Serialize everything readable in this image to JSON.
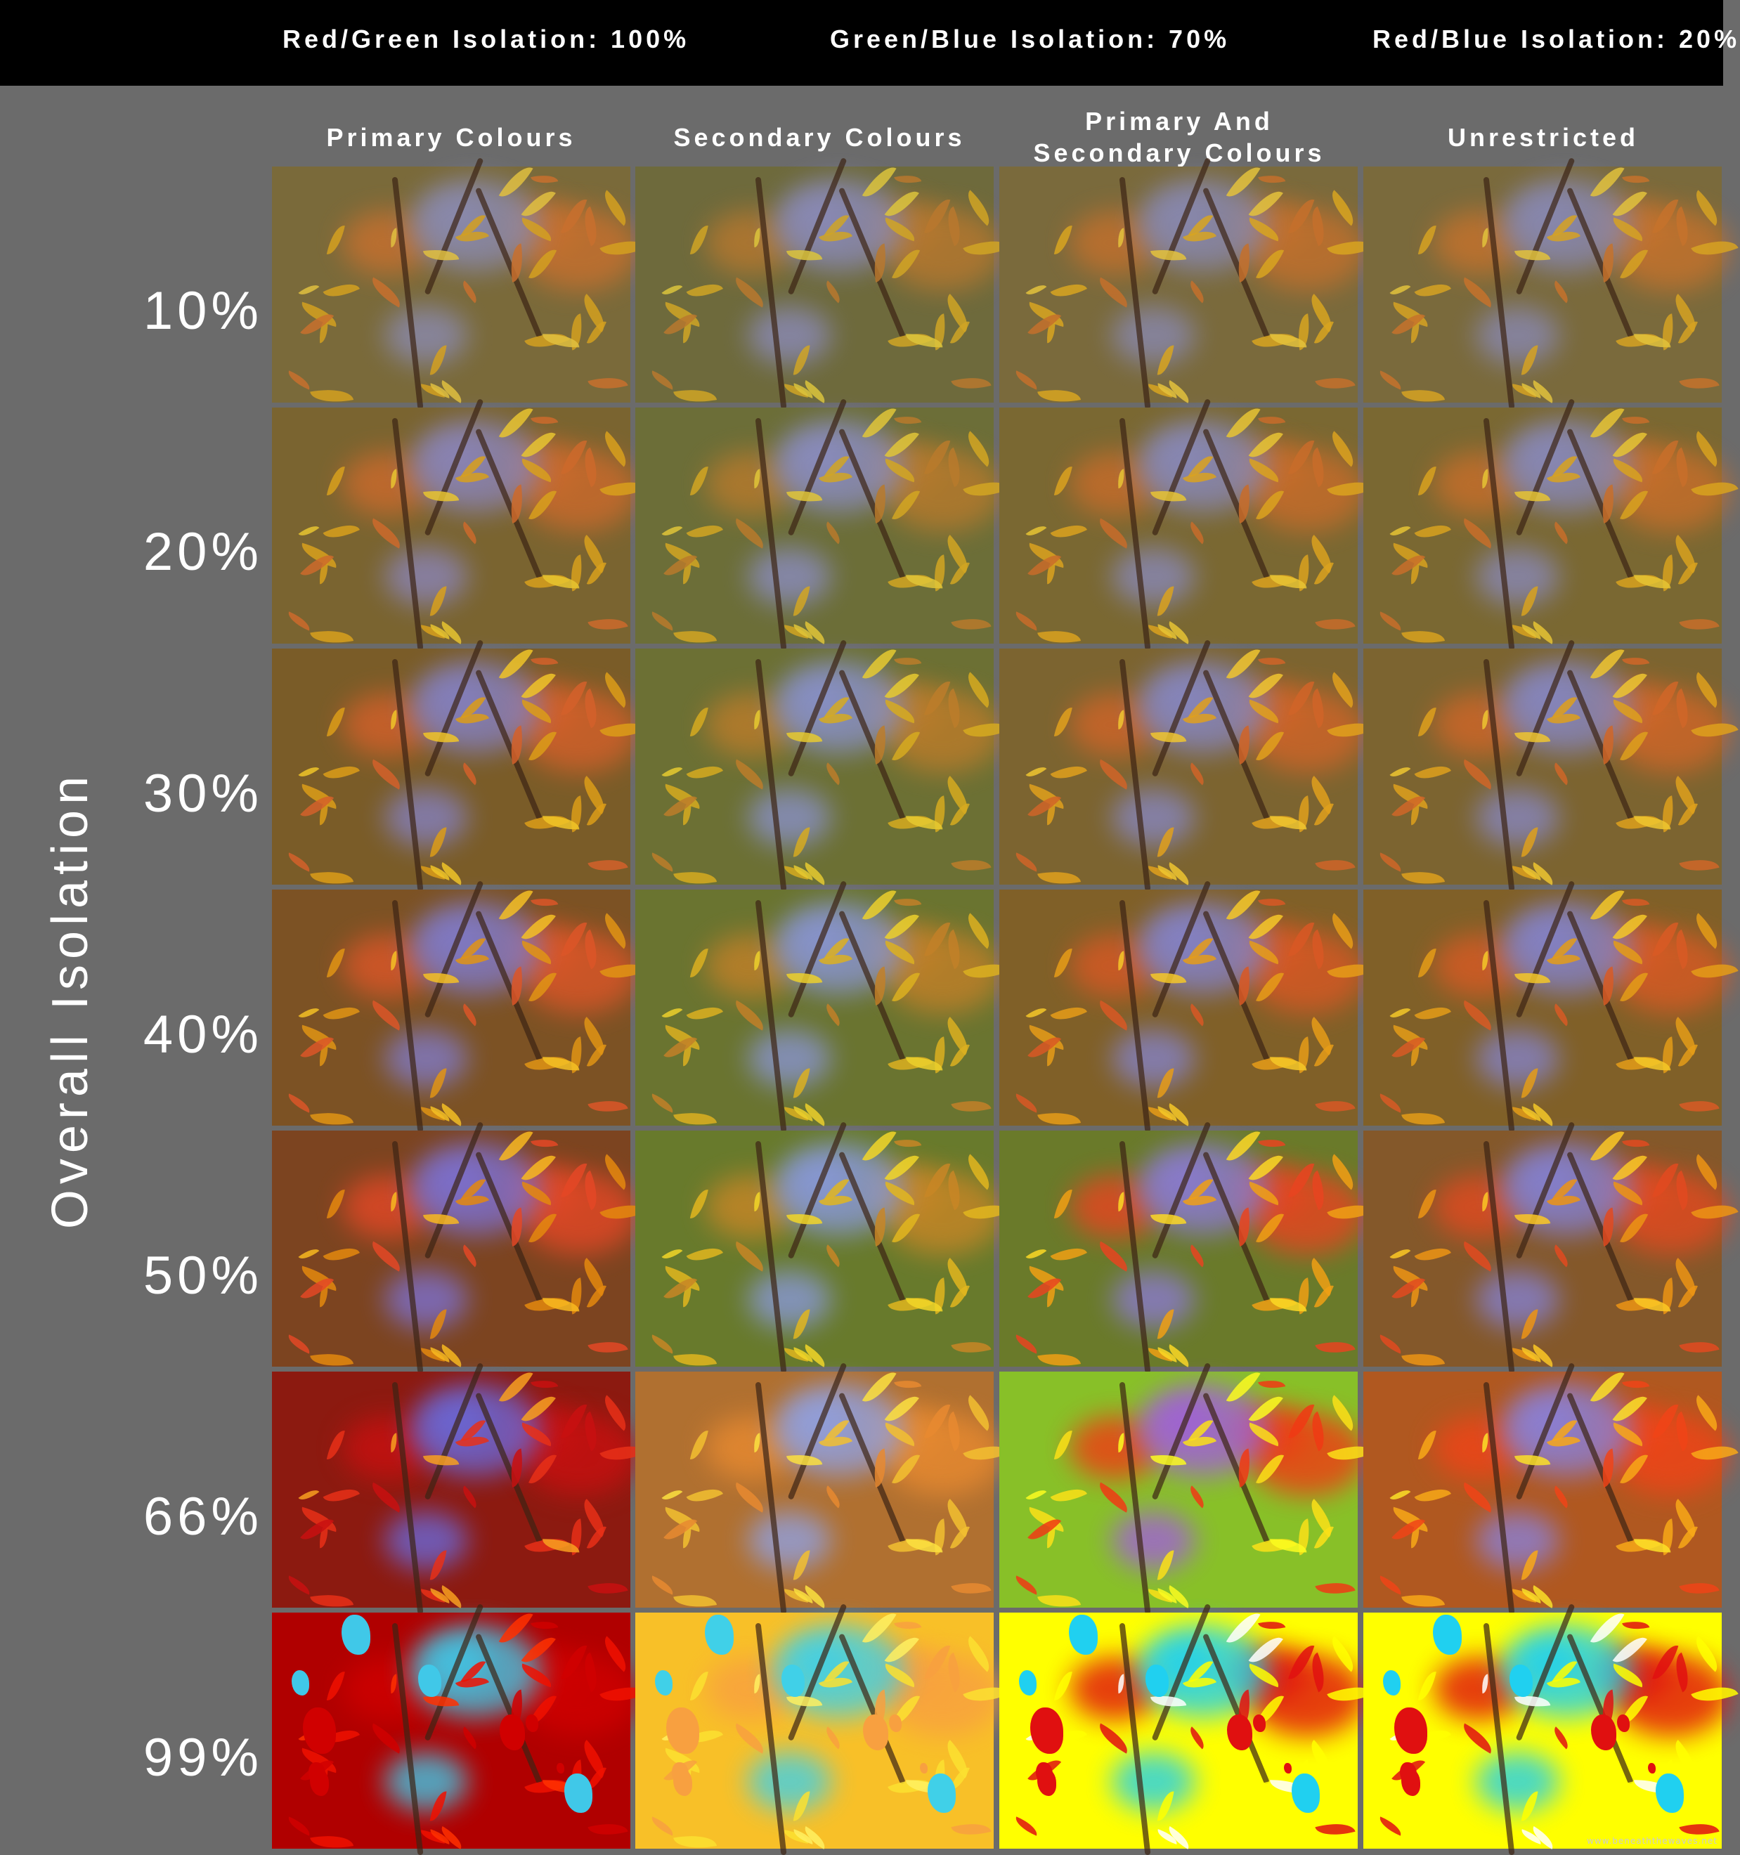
{
  "header": {
    "labels": [
      "Red/Green Isolation: 100%",
      "Green/Blue Isolation: 70%",
      "Red/Blue Isolation: 20%"
    ]
  },
  "columns": [
    {
      "lines": [
        "Primary Colours"
      ]
    },
    {
      "lines": [
        "Secondary Colours"
      ]
    },
    {
      "lines": [
        "Primary And",
        "Secondary Colours"
      ]
    },
    {
      "lines": [
        "Unrestricted"
      ]
    }
  ],
  "axis": {
    "title": "Overall Isolation"
  },
  "rows": [
    "10%",
    "20%",
    "30%",
    "40%",
    "50%",
    "66%",
    "99%"
  ],
  "watermark": "www.beneaththewaves.net",
  "palettes": [
    [
      {
        "bg": "#7a6a3a",
        "leaf1": "#d4a020",
        "leaf2": "#c8702e",
        "leaf3": "#e0c040",
        "shadow": "#8a8ab0"
      },
      {
        "bg": "#6e6a3c",
        "leaf1": "#d0a424",
        "leaf2": "#b8782e",
        "leaf3": "#dcc43c",
        "shadow": "#8a8ab8"
      },
      {
        "bg": "#7a6a3c",
        "leaf1": "#d8a420",
        "leaf2": "#c4702c",
        "leaf3": "#e4c23c",
        "shadow": "#8888b0"
      },
      {
        "bg": "#7a6a3c",
        "leaf1": "#d6a222",
        "leaf2": "#c6722c",
        "leaf3": "#e2c23c",
        "shadow": "#8888b2"
      }
    ],
    [
      {
        "bg": "#7a6430",
        "leaf1": "#d8a01c",
        "leaf2": "#cc6a2c",
        "leaf3": "#e8c430",
        "shadow": "#8a84b8"
      },
      {
        "bg": "#6c6e38",
        "leaf1": "#d2a622",
        "leaf2": "#b87a2c",
        "leaf3": "#e0c638",
        "shadow": "#8a8cc0"
      },
      {
        "bg": "#7a6832",
        "leaf1": "#daa21e",
        "leaf2": "#c86c2a",
        "leaf3": "#e8c434",
        "shadow": "#8888b8"
      },
      {
        "bg": "#7a6832",
        "leaf1": "#d8a21e",
        "leaf2": "#c86e2a",
        "leaf3": "#e6c434",
        "shadow": "#8888b8"
      }
    ],
    [
      {
        "bg": "#7a5c28",
        "leaf1": "#dc9c18",
        "leaf2": "#d4602a",
        "leaf3": "#f0c428",
        "shadow": "#8480c0"
      },
      {
        "bg": "#6c7034",
        "leaf1": "#d6aa20",
        "leaf2": "#bc7c2a",
        "leaf3": "#e6ca30",
        "shadow": "#8890c8"
      },
      {
        "bg": "#7c6430",
        "leaf1": "#e0a01c",
        "leaf2": "#d06428",
        "leaf3": "#f0c630",
        "shadow": "#8686c0"
      },
      {
        "bg": "#7c6430",
        "leaf1": "#dea01c",
        "leaf2": "#d06628",
        "leaf3": "#eec630",
        "shadow": "#8686c0"
      }
    ],
    [
      {
        "bg": "#7c5224",
        "leaf1": "#e09414",
        "leaf2": "#dc5628",
        "leaf3": "#f4c024",
        "shadow": "#807ac8"
      },
      {
        "bg": "#6a7430",
        "leaf1": "#dcb020",
        "leaf2": "#c28028",
        "leaf3": "#ecd02c",
        "shadow": "#8894d0"
      },
      {
        "bg": "#806028",
        "leaf1": "#e69c18",
        "leaf2": "#d85824",
        "leaf3": "#f6c828",
        "shadow": "#8482c8"
      },
      {
        "bg": "#806028",
        "leaf1": "#e49c18",
        "leaf2": "#d85a24",
        "leaf3": "#f4c828",
        "shadow": "#8482c8"
      }
    ],
    [
      {
        "bg": "#7c4420",
        "leaf1": "#e4880e",
        "leaf2": "#e44826",
        "leaf3": "#f8b820",
        "shadow": "#7c70d0"
      },
      {
        "bg": "#687a2c",
        "leaf1": "#e2b61e",
        "leaf2": "#c88626",
        "leaf3": "#f2d628",
        "shadow": "#8898d8"
      },
      {
        "bg": "#6a7a2a",
        "leaf1": "#f0a014",
        "leaf2": "#e84420",
        "leaf3": "#fcd824",
        "shadow": "#8a7ad0"
      },
      {
        "bg": "#84582a",
        "leaf1": "#ec9414",
        "leaf2": "#e24a20",
        "leaf3": "#fcc824",
        "shadow": "#8480d0"
      }
    ],
    [
      {
        "bg": "#8c1a10",
        "leaf1": "#e83018",
        "leaf2": "#c81010",
        "leaf3": "#f8a020",
        "shadow": "#6a68d8"
      },
      {
        "bg": "#b07030",
        "leaf1": "#f2c030",
        "leaf2": "#e88a30",
        "leaf3": "#fce040",
        "shadow": "#90a0e0"
      },
      {
        "bg": "#88c028",
        "leaf1": "#fce018",
        "leaf2": "#f03a14",
        "leaf3": "#fcfc20",
        "shadow": "#a060d8"
      },
      {
        "bg": "#b05820",
        "leaf1": "#f8a818",
        "leaf2": "#f04418",
        "leaf3": "#fce028",
        "shadow": "#8a80d8"
      }
    ],
    [
      {
        "bg": "#b00000",
        "leaf1": "#f01000",
        "leaf2": "#d00000",
        "leaf3": "#ff3000",
        "shadow": "#40c8e8"
      },
      {
        "bg": "#f8c028",
        "leaf1": "#fce030",
        "leaf2": "#f8a040",
        "leaf3": "#fff060",
        "shadow": "#40d0e8"
      },
      {
        "bg": "#ffff00",
        "leaf1": "#ffff00",
        "leaf2": "#e01010",
        "leaf3": "#ffffff",
        "shadow": "#20d0f0"
      },
      {
        "bg": "#ffff00",
        "leaf1": "#ffff00",
        "leaf2": "#e01010",
        "leaf3": "#ffffff",
        "shadow": "#20d0f0"
      }
    ]
  ]
}
